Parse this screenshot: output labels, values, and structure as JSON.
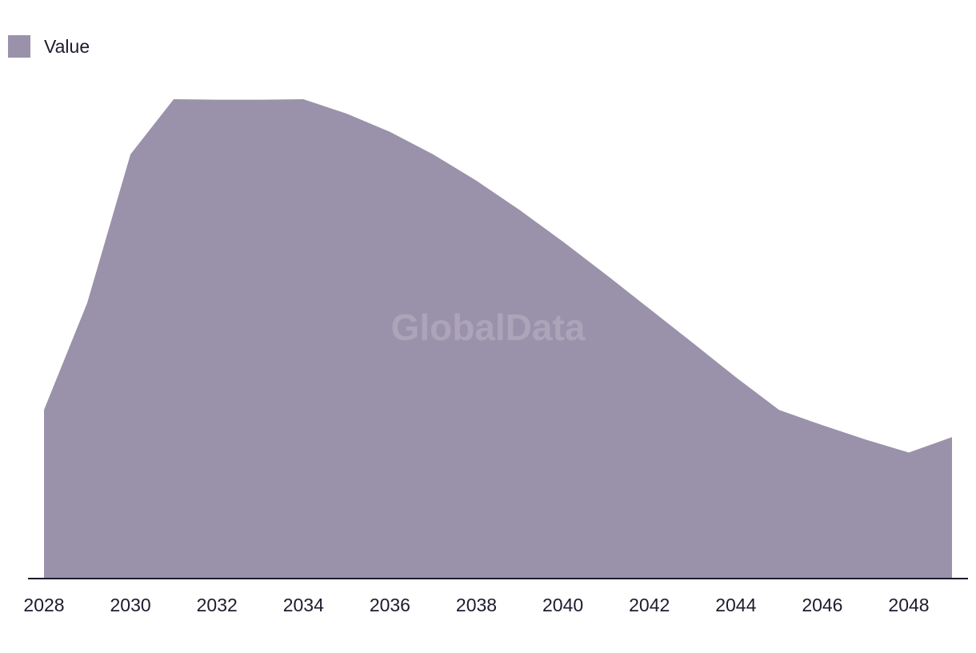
{
  "legend": {
    "label": "Value",
    "color": "#9a91aa"
  },
  "watermark": "GlobalData",
  "colors": {
    "area": "#9a91aa",
    "axis": "#1c1c2e",
    "text": "#1c1c2e"
  },
  "chart_data": {
    "type": "area",
    "title": "",
    "xlabel": "",
    "ylabel": "",
    "x": [
      2028,
      2029,
      2030,
      2031,
      2032,
      2033,
      2034,
      2035,
      2036,
      2037,
      2038,
      2039,
      2040,
      2041,
      2042,
      2043,
      2044,
      2045,
      2046,
      2047,
      2048,
      2049
    ],
    "x_tick_labels": [
      "2028",
      "2030",
      "2032",
      "2034",
      "2036",
      "2038",
      "2040",
      "2042",
      "2044",
      "2046",
      "2048"
    ],
    "series": [
      {
        "name": "Value",
        "values": [
          35.2,
          57.5,
          88.5,
          100,
          99.9,
          99.9,
          100,
          97,
          93.2,
          88.5,
          83,
          76.9,
          70.3,
          63.4,
          56.3,
          49.2,
          42,
          35.2,
          32,
          29,
          26.3,
          29.5
        ]
      }
    ],
    "ylim": [
      0,
      100
    ],
    "grid": false,
    "legend_position": "top-left"
  }
}
